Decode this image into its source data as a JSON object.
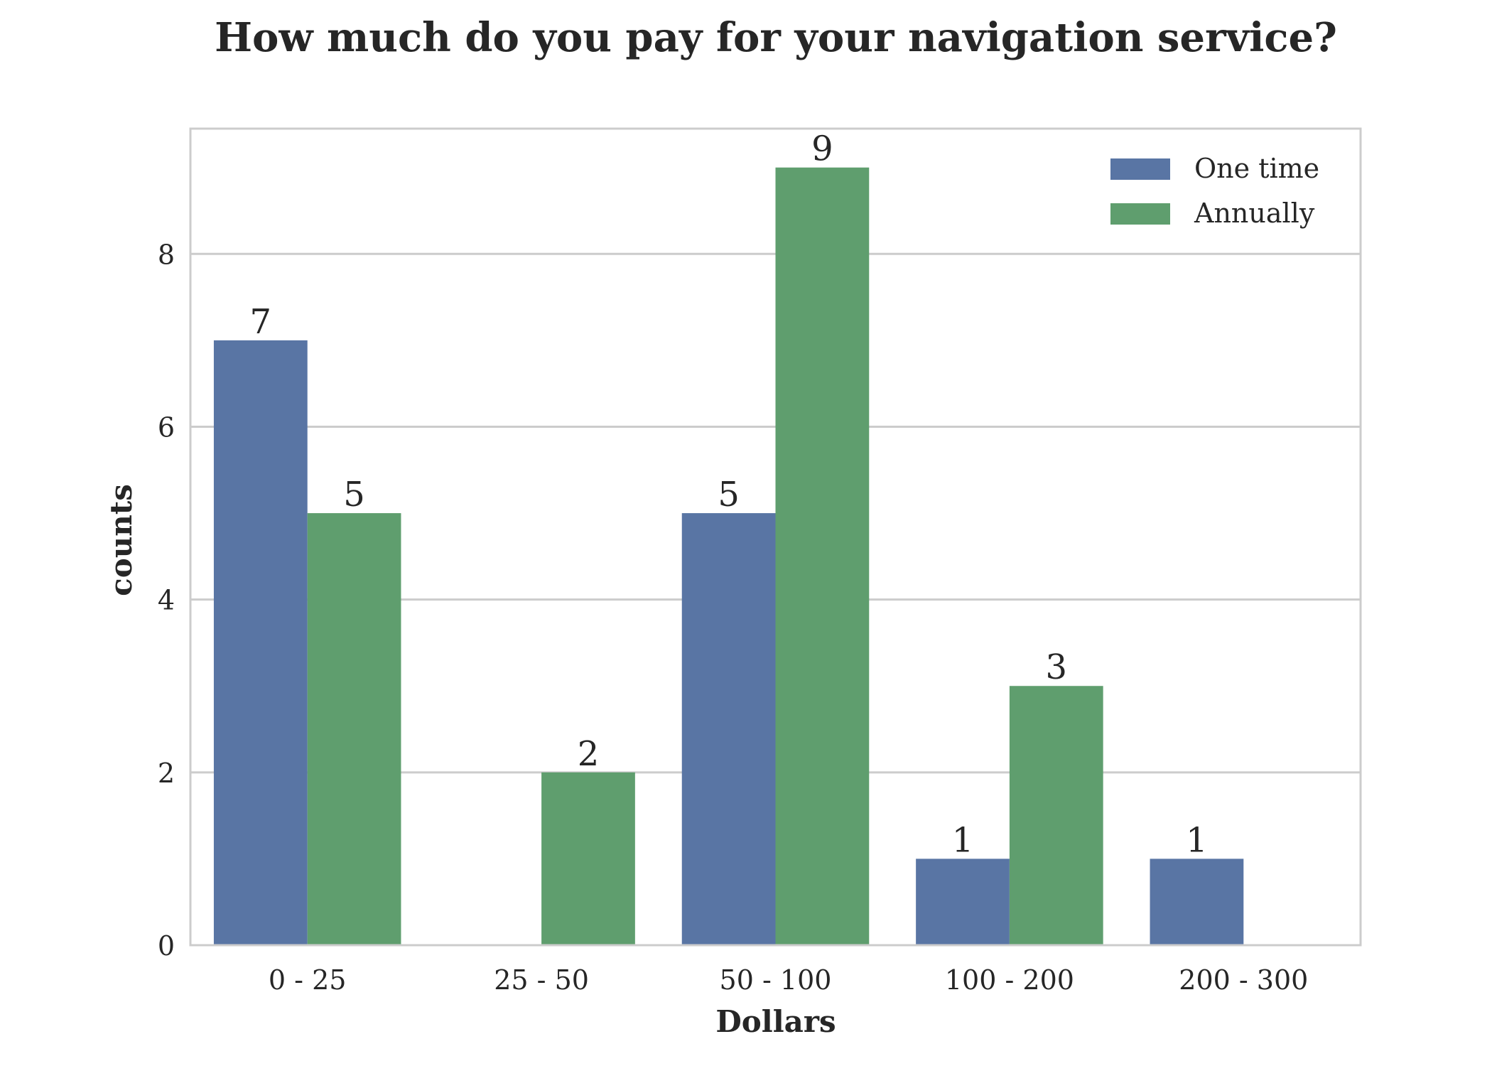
{
  "chart_data": {
    "type": "bar",
    "title": "How much do you pay for your navigation service?",
    "xlabel": "Dollars",
    "ylabel": "counts",
    "categories": [
      "0 - 25",
      "25 - 50",
      "50 - 100",
      "100 - 200",
      "200 - 300"
    ],
    "series": [
      {
        "name": "One time",
        "values": [
          7,
          0,
          5,
          1,
          1
        ],
        "labels": [
          "7",
          "",
          "5",
          "1",
          "1"
        ],
        "color": "#5975a4"
      },
      {
        "name": "Annually",
        "values": [
          5,
          2,
          9,
          3,
          0
        ],
        "labels": [
          "5",
          "2",
          "9",
          "3",
          ""
        ],
        "color": "#5f9e6e"
      }
    ],
    "ylim": [
      0,
      9.45
    ],
    "yticks": [
      0,
      2,
      4,
      6,
      8
    ],
    "ytick_labels": [
      "0",
      "2",
      "4",
      "6",
      "8"
    ],
    "grid": "horizontal",
    "legend_position": "top-right",
    "colors": {
      "grid": "#cccccc",
      "frame": "#cccccc",
      "text": "#262626"
    }
  }
}
